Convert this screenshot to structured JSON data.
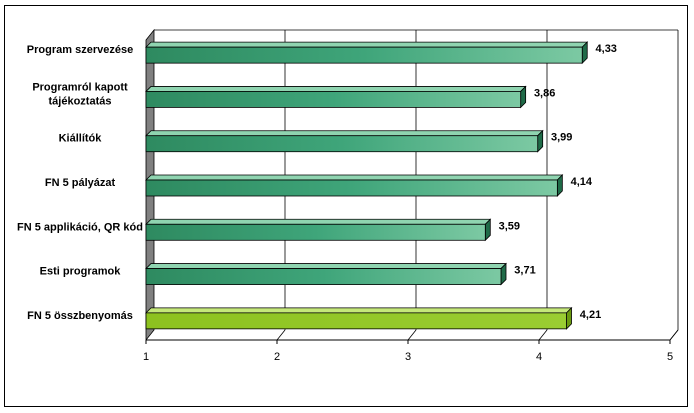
{
  "chart_data": {
    "type": "bar",
    "orientation": "horizontal",
    "categories": [
      [
        "Program szervezése"
      ],
      [
        "Programról kapott",
        "tájékoztatás"
      ],
      [
        "Kiállítók"
      ],
      [
        "FN 5 pályázat"
      ],
      [
        "FN 5 applikáció, QR kód"
      ],
      [
        "Esti programok"
      ],
      [
        "FN 5 összbenyomás"
      ]
    ],
    "values": [
      4.33,
      3.86,
      3.99,
      4.14,
      3.59,
      3.71,
      4.21
    ],
    "value_labels": [
      "4,33",
      "3,86",
      "3,99",
      "4,14",
      "3,59",
      "3,71",
      "4,21"
    ],
    "xlim": [
      1,
      5
    ],
    "ticks": [
      "1",
      "2",
      "3",
      "4",
      "5"
    ],
    "grid": true,
    "legend": "none",
    "colors": {
      "bar": "#3fa57a",
      "bar_highlight": "#9acd32",
      "plot_wall": "#808080"
    },
    "highlight_index": 6
  }
}
